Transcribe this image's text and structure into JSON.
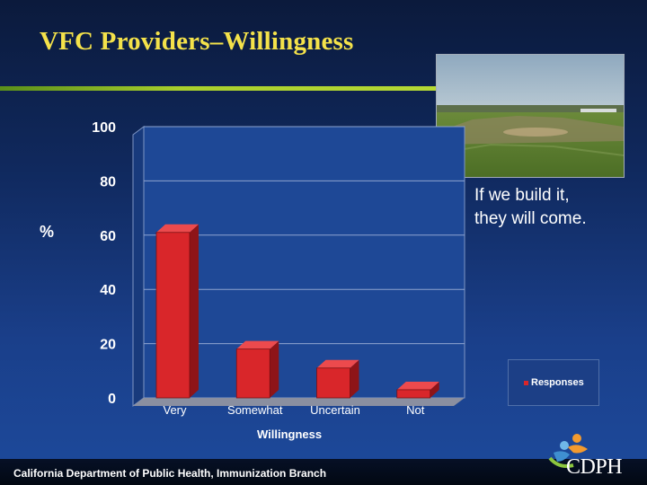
{
  "slide": {
    "title": "VFC Providers–Willingness",
    "caption_line1": "If we build it,",
    "caption_line2": "they will come.",
    "footer": "California Department of Public Health, Immunization Branch",
    "logo_text": "CDPH",
    "photo_icon": "baseball-field-photo"
  },
  "colors": {
    "title": "#f4e24a",
    "accent_line": "#a9cf2c",
    "bar": "#d9262a"
  },
  "chart_data": {
    "type": "bar",
    "categories": [
      "Very",
      "Somewhat",
      "Uncertain",
      "Not"
    ],
    "series": [
      {
        "name": "Responses",
        "values": [
          61,
          18,
          11,
          3
        ]
      }
    ],
    "title": "",
    "xlabel": "Willingness",
    "ylabel": "%",
    "ylim": [
      0,
      100
    ],
    "yticks": [
      "0",
      "20",
      "40",
      "60",
      "80",
      "100"
    ],
    "grid": true,
    "legend": "right",
    "style": "3d"
  }
}
